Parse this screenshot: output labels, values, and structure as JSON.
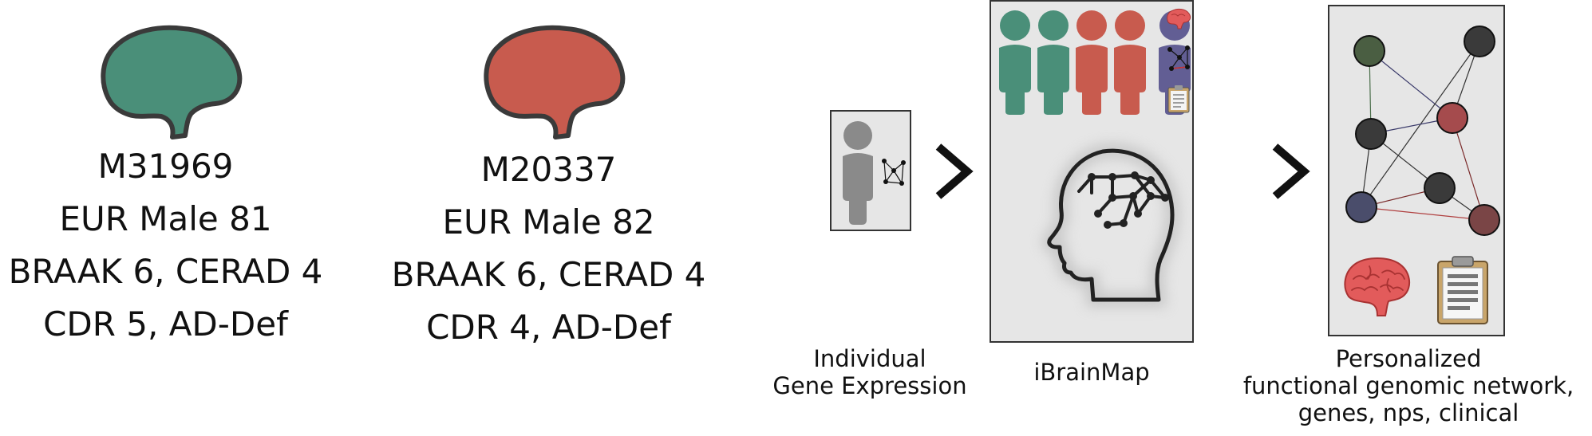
{
  "colors": {
    "green": "#4a8f79",
    "red": "#c85b4e",
    "purple": "#625e94",
    "grey_person": "#8a8a8a",
    "panel_bg": "#e6e6e6",
    "node_dark": "#3a3a3a",
    "node_green": "#4a5e42",
    "node_red": "#a54b4d",
    "node_navy": "#4a4d6b",
    "node_maroon": "#7a4546"
  },
  "subjects": [
    {
      "id": "M31969",
      "line1": "EUR Male 81",
      "line2": "BRAAK 6, CERAD 4",
      "line3": "CDR 5, AD-Def",
      "brain_color": "green"
    },
    {
      "id": "M20337",
      "line1": "EUR Male 82",
      "line2": "BRAAK 6, CERAD 4",
      "line3": "CDR 4, AD-Def",
      "brain_color": "red"
    }
  ],
  "pipeline": {
    "step1": {
      "caption_line1": "Individual",
      "caption_line2": "Gene Expression",
      "icon": "person-network-icon"
    },
    "step2": {
      "caption": "iBrainMap",
      "icon": "head-network-icon"
    },
    "step3": {
      "caption_line1": "Personalized",
      "caption_line2": "functional genomic network,",
      "caption_line3": "genes, nps, clinical",
      "icons": [
        "network-graph",
        "brain-icon",
        "clipboard-icon"
      ]
    },
    "arrow_icon": "chevron-right-icon"
  }
}
